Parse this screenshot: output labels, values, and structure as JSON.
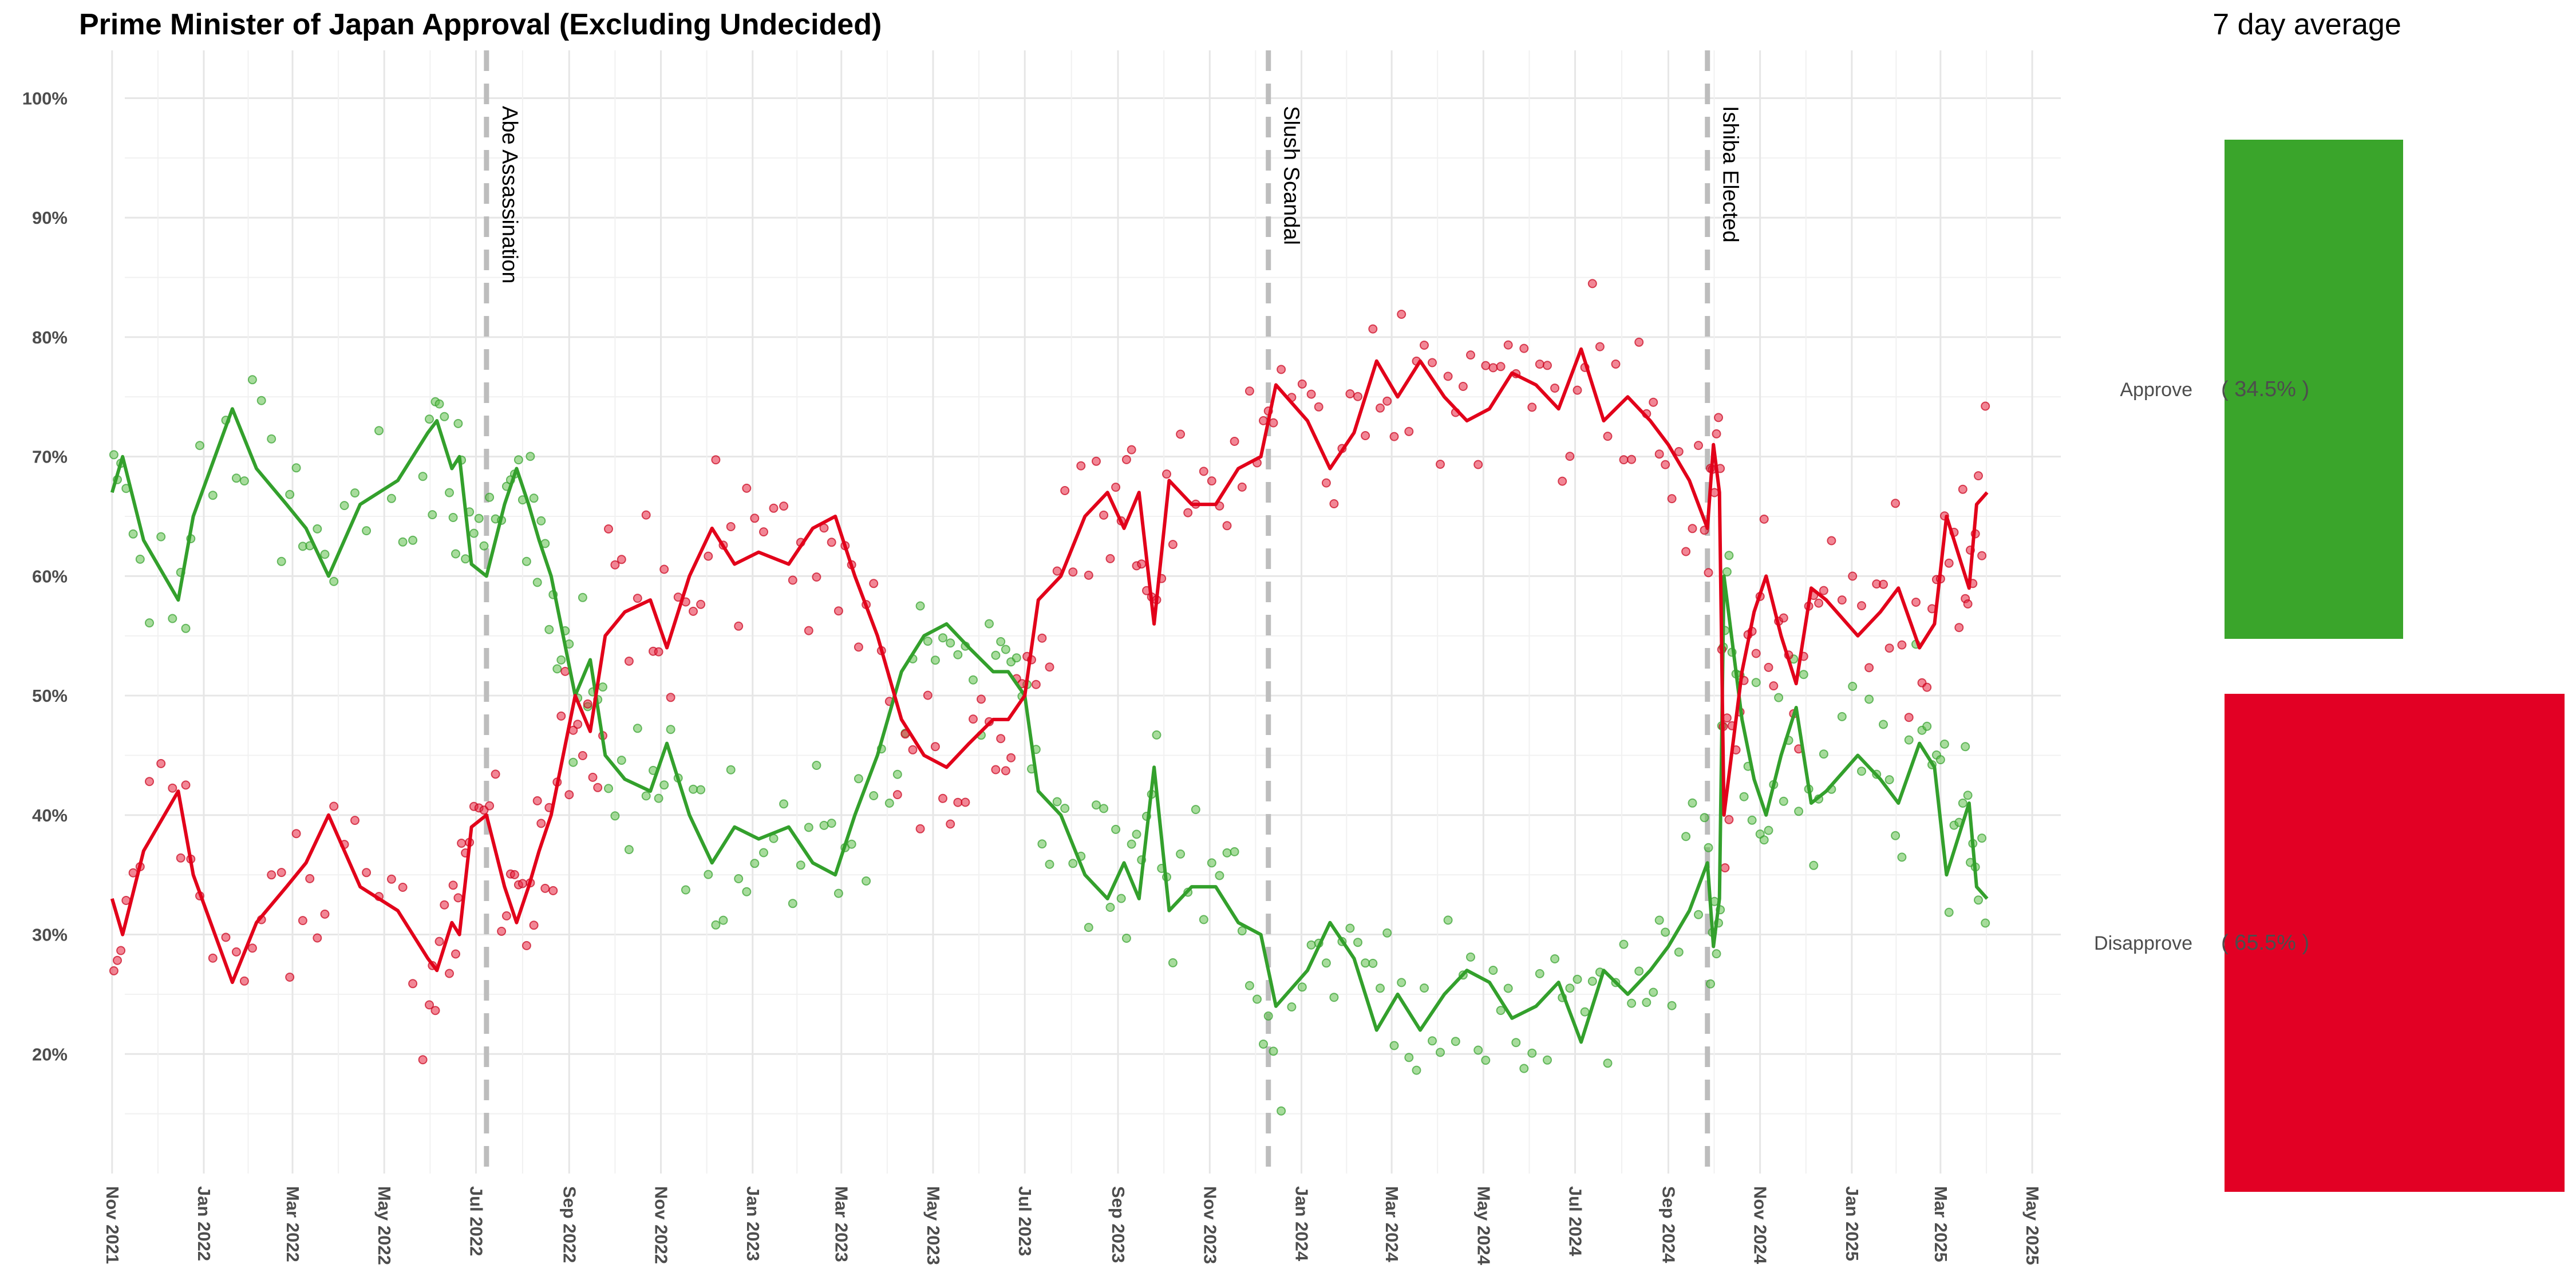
{
  "chart_data": [
    {
      "type": "line",
      "title": "Prime Minister of Japan Approval (Excluding Undecided)",
      "xlabel": "",
      "ylabel": "",
      "ylim": [
        10,
        104
      ],
      "xlim": [
        "2021-10-10",
        "2025-05-20"
      ],
      "grid": true,
      "y_ticks": [
        "20%",
        "30%",
        "40%",
        "50%",
        "60%",
        "70%",
        "80%",
        "90%",
        "100%"
      ],
      "y_tick_values": [
        20,
        30,
        40,
        50,
        60,
        70,
        80,
        90,
        100
      ],
      "x_ticks": [
        "Nov 2021",
        "Jan 2022",
        "Mar 2022",
        "May 2022",
        "Jul 2022",
        "Sep 2022",
        "Nov 2022",
        "Jan 2023",
        "Mar 2023",
        "May 2023",
        "Jul 2023",
        "Sep 2023",
        "Nov 2023",
        "Jan 2024",
        "Mar 2024",
        "May 2024",
        "Jul 2024",
        "Sep 2024",
        "Nov 2024",
        "Jan 2025",
        "Mar 2025",
        "May 2025"
      ],
      "x_tick_dates": [
        "2021-11-01",
        "2022-01-01",
        "2022-03-01",
        "2022-05-01",
        "2022-07-01",
        "2022-09-01",
        "2022-11-01",
        "2023-01-01",
        "2023-03-01",
        "2023-05-01",
        "2023-07-01",
        "2023-09-01",
        "2023-11-01",
        "2024-01-01",
        "2024-03-01",
        "2024-05-01",
        "2024-07-01",
        "2024-09-01",
        "2024-11-01",
        "2025-01-01",
        "2025-03-01",
        "2025-05-01"
      ],
      "events": [
        {
          "date": "2022-07-08",
          "label": "Abe Assassination"
        },
        {
          "date": "2023-12-10",
          "label": "Slush Scandal"
        },
        {
          "date": "2024-09-27",
          "label": "Ishiba Elected"
        }
      ],
      "series": [
        {
          "key": "approve",
          "color": "#33a02c",
          "points": [
            [
              "2021-11-01",
              67
            ],
            [
              "2021-11-08",
              70
            ],
            [
              "2021-11-22",
              63
            ],
            [
              "2021-12-15",
              58
            ],
            [
              "2021-12-25",
              65
            ],
            [
              "2022-01-20",
              74
            ],
            [
              "2022-02-05",
              69
            ],
            [
              "2022-02-25",
              66
            ],
            [
              "2022-03-10",
              64
            ],
            [
              "2022-03-25",
              60
            ],
            [
              "2022-04-15",
              66
            ],
            [
              "2022-05-10",
              68
            ],
            [
              "2022-05-30",
              72
            ],
            [
              "2022-06-05",
              73
            ],
            [
              "2022-06-15",
              69
            ],
            [
              "2022-06-20",
              70
            ],
            [
              "2022-06-28",
              61
            ],
            [
              "2022-07-08",
              60
            ],
            [
              "2022-07-20",
              66
            ],
            [
              "2022-07-28",
              69
            ],
            [
              "2022-08-05",
              66
            ],
            [
              "2022-08-12",
              63
            ],
            [
              "2022-08-20",
              60
            ],
            [
              "2022-08-28",
              55
            ],
            [
              "2022-09-05",
              50
            ],
            [
              "2022-09-15",
              53
            ],
            [
              "2022-09-25",
              45
            ],
            [
              "2022-10-08",
              43
            ],
            [
              "2022-10-25",
              42
            ],
            [
              "2022-11-05",
              46
            ],
            [
              "2022-11-20",
              40
            ],
            [
              "2022-12-05",
              36
            ],
            [
              "2022-12-20",
              39
            ],
            [
              "2023-01-05",
              38
            ],
            [
              "2023-01-25",
              39
            ],
            [
              "2023-02-10",
              36
            ],
            [
              "2023-02-25",
              35
            ],
            [
              "2023-03-10",
              40
            ],
            [
              "2023-03-25",
              45
            ],
            [
              "2023-04-10",
              52
            ],
            [
              "2023-04-25",
              55
            ],
            [
              "2023-05-10",
              56
            ],
            [
              "2023-05-25",
              54
            ],
            [
              "2023-06-10",
              52
            ],
            [
              "2023-06-20",
              52
            ],
            [
              "2023-07-01",
              50
            ],
            [
              "2023-07-10",
              42
            ],
            [
              "2023-07-25",
              40
            ],
            [
              "2023-08-10",
              35
            ],
            [
              "2023-08-25",
              33
            ],
            [
              "2023-09-05",
              36
            ],
            [
              "2023-09-15",
              33
            ],
            [
              "2023-09-25",
              44
            ],
            [
              "2023-10-05",
              32
            ],
            [
              "2023-10-20",
              34
            ],
            [
              "2023-11-05",
              34
            ],
            [
              "2023-11-20",
              31
            ],
            [
              "2023-12-05",
              30
            ],
            [
              "2023-12-15",
              24
            ],
            [
              "2024-01-05",
              27
            ],
            [
              "2024-01-20",
              31
            ],
            [
              "2024-02-05",
              28
            ],
            [
              "2024-02-20",
              22
            ],
            [
              "2024-03-05",
              25
            ],
            [
              "2024-03-20",
              22
            ],
            [
              "2024-04-05",
              25
            ],
            [
              "2024-04-20",
              27
            ],
            [
              "2024-05-05",
              26
            ],
            [
              "2024-05-20",
              23
            ],
            [
              "2024-06-05",
              24
            ],
            [
              "2024-06-20",
              26
            ],
            [
              "2024-07-05",
              21
            ],
            [
              "2024-07-20",
              27
            ],
            [
              "2024-08-05",
              25
            ],
            [
              "2024-08-20",
              27
            ],
            [
              "2024-09-01",
              29
            ],
            [
              "2024-09-15",
              32
            ],
            [
              "2024-09-27",
              36
            ],
            [
              "2024-10-01",
              29
            ],
            [
              "2024-10-05",
              33
            ],
            [
              "2024-10-08",
              60
            ],
            [
              "2024-10-12",
              56
            ],
            [
              "2024-10-20",
              48
            ],
            [
              "2024-10-28",
              43
            ],
            [
              "2024-11-05",
              40
            ],
            [
              "2024-11-15",
              45
            ],
            [
              "2024-11-25",
              49
            ],
            [
              "2024-12-05",
              41
            ],
            [
              "2024-12-15",
              42
            ],
            [
              "2025-01-05",
              45
            ],
            [
              "2025-01-20",
              43
            ],
            [
              "2025-02-01",
              41
            ],
            [
              "2025-02-15",
              46
            ],
            [
              "2025-02-25",
              44
            ],
            [
              "2025-03-05",
              35
            ],
            [
              "2025-03-15",
              39
            ],
            [
              "2025-03-20",
              41
            ],
            [
              "2025-03-25",
              34
            ],
            [
              "2025-04-01",
              33
            ]
          ]
        },
        {
          "key": "disapprove",
          "color": "#e2001a",
          "points": [
            [
              "2021-11-01",
              33
            ],
            [
              "2021-11-08",
              30
            ],
            [
              "2021-11-22",
              37
            ],
            [
              "2021-12-15",
              42
            ],
            [
              "2021-12-25",
              35
            ],
            [
              "2022-01-20",
              26
            ],
            [
              "2022-02-05",
              31
            ],
            [
              "2022-02-25",
              34
            ],
            [
              "2022-03-10",
              36
            ],
            [
              "2022-03-25",
              40
            ],
            [
              "2022-04-15",
              34
            ],
            [
              "2022-05-10",
              32
            ],
            [
              "2022-05-30",
              28
            ],
            [
              "2022-06-05",
              27
            ],
            [
              "2022-06-15",
              31
            ],
            [
              "2022-06-20",
              30
            ],
            [
              "2022-06-28",
              39
            ],
            [
              "2022-07-08",
              40
            ],
            [
              "2022-07-20",
              34
            ],
            [
              "2022-07-28",
              31
            ],
            [
              "2022-08-05",
              34
            ],
            [
              "2022-08-12",
              37
            ],
            [
              "2022-08-20",
              40
            ],
            [
              "2022-08-28",
              45
            ],
            [
              "2022-09-05",
              50
            ],
            [
              "2022-09-15",
              47
            ],
            [
              "2022-09-25",
              55
            ],
            [
              "2022-10-08",
              57
            ],
            [
              "2022-10-25",
              58
            ],
            [
              "2022-11-05",
              54
            ],
            [
              "2022-11-20",
              60
            ],
            [
              "2022-12-05",
              64
            ],
            [
              "2022-12-20",
              61
            ],
            [
              "2023-01-05",
              62
            ],
            [
              "2023-01-25",
              61
            ],
            [
              "2023-02-10",
              64
            ],
            [
              "2023-02-25",
              65
            ],
            [
              "2023-03-10",
              60
            ],
            [
              "2023-03-25",
              55
            ],
            [
              "2023-04-10",
              48
            ],
            [
              "2023-04-25",
              45
            ],
            [
              "2023-05-10",
              44
            ],
            [
              "2023-05-25",
              46
            ],
            [
              "2023-06-10",
              48
            ],
            [
              "2023-06-20",
              48
            ],
            [
              "2023-07-01",
              50
            ],
            [
              "2023-07-10",
              58
            ],
            [
              "2023-07-25",
              60
            ],
            [
              "2023-08-10",
              65
            ],
            [
              "2023-08-25",
              67
            ],
            [
              "2023-09-05",
              64
            ],
            [
              "2023-09-15",
              67
            ],
            [
              "2023-09-25",
              56
            ],
            [
              "2023-10-05",
              68
            ],
            [
              "2023-10-20",
              66
            ],
            [
              "2023-11-05",
              66
            ],
            [
              "2023-11-20",
              69
            ],
            [
              "2023-12-05",
              70
            ],
            [
              "2023-12-15",
              76
            ],
            [
              "2024-01-05",
              73
            ],
            [
              "2024-01-20",
              69
            ],
            [
              "2024-02-05",
              72
            ],
            [
              "2024-02-20",
              78
            ],
            [
              "2024-03-05",
              75
            ],
            [
              "2024-03-20",
              78
            ],
            [
              "2024-04-05",
              75
            ],
            [
              "2024-04-20",
              73
            ],
            [
              "2024-05-05",
              74
            ],
            [
              "2024-05-20",
              77
            ],
            [
              "2024-06-05",
              76
            ],
            [
              "2024-06-20",
              74
            ],
            [
              "2024-07-05",
              79
            ],
            [
              "2024-07-20",
              73
            ],
            [
              "2024-08-05",
              75
            ],
            [
              "2024-08-20",
              73
            ],
            [
              "2024-09-01",
              71
            ],
            [
              "2024-09-15",
              68
            ],
            [
              "2024-09-27",
              64
            ],
            [
              "2024-10-01",
              71
            ],
            [
              "2024-10-05",
              67
            ],
            [
              "2024-10-08",
              40
            ],
            [
              "2024-10-12",
              44
            ],
            [
              "2024-10-20",
              52
            ],
            [
              "2024-10-28",
              57
            ],
            [
              "2024-11-05",
              60
            ],
            [
              "2024-11-15",
              55
            ],
            [
              "2024-11-25",
              51
            ],
            [
              "2024-12-05",
              59
            ],
            [
              "2024-12-15",
              58
            ],
            [
              "2025-01-05",
              55
            ],
            [
              "2025-01-20",
              57
            ],
            [
              "2025-02-01",
              59
            ],
            [
              "2025-02-15",
              54
            ],
            [
              "2025-02-25",
              56
            ],
            [
              "2025-03-05",
              65
            ],
            [
              "2025-03-15",
              61
            ],
            [
              "2025-03-20",
              59
            ],
            [
              "2025-03-25",
              66
            ],
            [
              "2025-04-01",
              67
            ]
          ]
        }
      ]
    },
    {
      "type": "bar",
      "title": "7 day average",
      "categories": [
        "Approve",
        "Disapprove"
      ],
      "values": [
        34.5,
        65.5
      ],
      "value_labels": [
        "( 34.5% )",
        "( 65.5% )"
      ],
      "colors": [
        "#3aa52b",
        "#e20024"
      ]
    }
  ]
}
